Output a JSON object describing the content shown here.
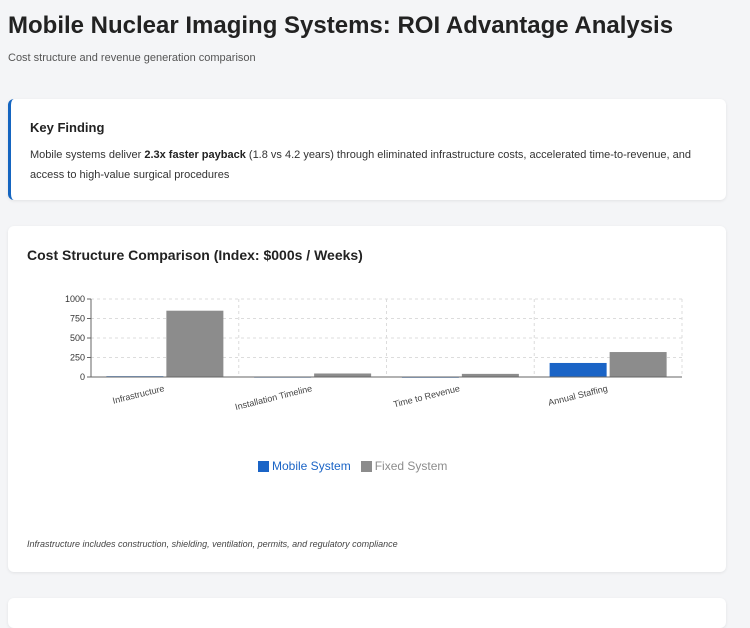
{
  "header": {
    "title": "Mobile Nuclear Imaging Systems: ROI Advantage Analysis",
    "subtitle": "Cost structure and revenue generation comparison"
  },
  "finding": {
    "title": "Key Finding",
    "text_before": "Mobile systems deliver ",
    "highlight": "2.3x faster payback",
    "text_after": " (1.8 vs 4.2 years) through eliminated infrastructure costs, accelerated time-to-revenue, and access to high-value surgical procedures",
    "accent_color": "#1565c0"
  },
  "chart_data": {
    "type": "bar",
    "title": "Cost Structure Comparison (Index: $000s / Weeks)",
    "categories": [
      "Infrastructure",
      "Installation Timeline",
      "Time to Revenue",
      "Annual Staffing"
    ],
    "series": [
      {
        "name": "Mobile System",
        "values": [
          10,
          2,
          1,
          180
        ],
        "color": "#1a64c6"
      },
      {
        "name": "Fixed System",
        "values": [
          850,
          45,
          40,
          320
        ],
        "color": "#8c8c8c"
      }
    ],
    "ylim": [
      0,
      1000
    ],
    "yticks": [
      0,
      250,
      500,
      750,
      1000
    ],
    "grid": true,
    "legend_position": "bottom",
    "note": "Infrastructure includes construction, shielding, ventilation, permits, and regulatory compliance"
  }
}
